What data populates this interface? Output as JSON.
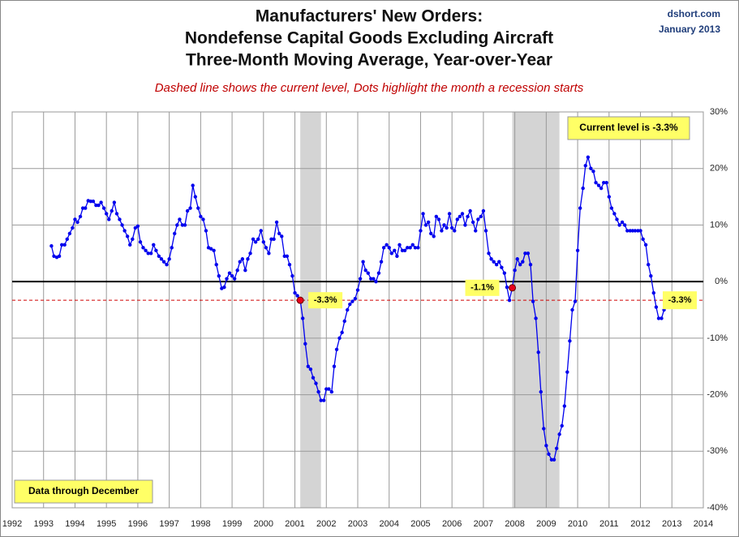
{
  "chart_data": {
    "type": "line",
    "title": [
      "Manufacturers' New Orders:",
      "Nondefense Capital Goods Excluding Aircraft",
      "Three-Month Moving Average, Year-over-Year"
    ],
    "subtitle": "Dashed line shows the current level, Dots highlight the month a recession starts",
    "source": "dshort.com",
    "date": "January 2013",
    "annotations": {
      "current_level": "Current level is -3.3%",
      "data_through": "Data through December",
      "end_label": "-3.3%"
    },
    "reference_line": -3.3,
    "xlim": [
      1992,
      2014
    ],
    "xticks": [
      1992,
      1993,
      1994,
      1995,
      1996,
      1997,
      1998,
      1999,
      2000,
      2001,
      2002,
      2003,
      2004,
      2005,
      2006,
      2007,
      2008,
      2009,
      2010,
      2011,
      2012,
      2013,
      2014
    ],
    "ylim": [
      -40,
      30
    ],
    "yticks": [
      {
        "value": -40,
        "label": "-40%"
      },
      {
        "value": -30,
        "label": "-30%"
      },
      {
        "value": -20,
        "label": "-20%"
      },
      {
        "value": -10,
        "label": "-10%"
      },
      {
        "value": 0,
        "label": "0%"
      },
      {
        "value": 10,
        "label": "10%"
      },
      {
        "value": 20,
        "label": "20%"
      },
      {
        "value": 30,
        "label": "30%"
      }
    ],
    "grid": true,
    "recessions": [
      [
        2001.17,
        2001.83
      ],
      [
        2007.92,
        2009.42
      ]
    ],
    "recession_starts": {
      "color": "#e8001c",
      "x": [
        2001.17,
        2007.92
      ],
      "values": [
        -3.3,
        -1.1
      ],
      "value_labels": [
        "-3.3%",
        "-1.1%"
      ]
    },
    "series": [
      {
        "color": "#0000ee",
        "x": [
          1993.25,
          1993.33,
          1993.42,
          1993.5,
          1993.58,
          1993.67,
          1993.75,
          1993.83,
          1993.92,
          1994,
          1994.08,
          1994.17,
          1994.25,
          1994.33,
          1994.42,
          1994.5,
          1994.58,
          1994.67,
          1994.75,
          1994.83,
          1994.92,
          1995,
          1995.08,
          1995.17,
          1995.25,
          1995.33,
          1995.42,
          1995.5,
          1995.58,
          1995.67,
          1995.75,
          1995.83,
          1995.92,
          1996,
          1996.08,
          1996.17,
          1996.25,
          1996.33,
          1996.42,
          1996.5,
          1996.58,
          1996.67,
          1996.75,
          1996.83,
          1996.92,
          1997,
          1997.08,
          1997.17,
          1997.25,
          1997.33,
          1997.42,
          1997.5,
          1997.58,
          1997.67,
          1997.75,
          1997.83,
          1997.92,
          1998,
          1998.08,
          1998.17,
          1998.25,
          1998.33,
          1998.42,
          1998.5,
          1998.58,
          1998.67,
          1998.75,
          1998.83,
          1998.92,
          1999,
          1999.08,
          1999.17,
          1999.25,
          1999.33,
          1999.42,
          1999.5,
          1999.58,
          1999.67,
          1999.75,
          1999.83,
          1999.92,
          2000,
          2000.08,
          2000.17,
          2000.25,
          2000.33,
          2000.42,
          2000.5,
          2000.58,
          2000.67,
          2000.75,
          2000.83,
          2000.92,
          2001,
          2001.08,
          2001.17,
          2001.25,
          2001.33,
          2001.42,
          2001.5,
          2001.58,
          2001.67,
          2001.75,
          2001.83,
          2001.92,
          2002,
          2002.08,
          2002.17,
          2002.25,
          2002.33,
          2002.42,
          2002.5,
          2002.58,
          2002.67,
          2002.75,
          2002.83,
          2002.92,
          2003,
          2003.08,
          2003.17,
          2003.25,
          2003.33,
          2003.42,
          2003.5,
          2003.58,
          2003.67,
          2003.75,
          2003.83,
          2003.92,
          2004,
          2004.08,
          2004.17,
          2004.25,
          2004.33,
          2004.42,
          2004.5,
          2004.58,
          2004.67,
          2004.75,
          2004.83,
          2004.92,
          2005,
          2005.08,
          2005.17,
          2005.25,
          2005.33,
          2005.42,
          2005.5,
          2005.58,
          2005.67,
          2005.75,
          2005.83,
          2005.92,
          2006,
          2006.08,
          2006.17,
          2006.25,
          2006.33,
          2006.42,
          2006.5,
          2006.58,
          2006.67,
          2006.75,
          2006.83,
          2006.92,
          2007,
          2007.08,
          2007.17,
          2007.25,
          2007.33,
          2007.42,
          2007.5,
          2007.58,
          2007.67,
          2007.75,
          2007.83,
          2007.92,
          2008,
          2008.08,
          2008.17,
          2008.25,
          2008.33,
          2008.42,
          2008.5,
          2008.58,
          2008.67,
          2008.75,
          2008.83,
          2008.92,
          2009,
          2009.08,
          2009.17,
          2009.25,
          2009.33,
          2009.42,
          2009.5,
          2009.58,
          2009.67,
          2009.75,
          2009.83,
          2009.92,
          2010,
          2010.08,
          2010.17,
          2010.25,
          2010.33,
          2010.42,
          2010.5,
          2010.58,
          2010.67,
          2010.75,
          2010.83,
          2010.92,
          2011,
          2011.08,
          2011.17,
          2011.25,
          2011.33,
          2011.42,
          2011.5,
          2011.58,
          2011.67,
          2011.75,
          2011.83,
          2011.92,
          2012,
          2012.08,
          2012.17,
          2012.25,
          2012.33,
          2012.42,
          2012.5,
          2012.58,
          2012.67,
          2012.75,
          2012.83,
          2012.92
        ],
        "values": [
          6.3,
          4.5,
          4.3,
          4.5,
          6.5,
          6.5,
          7.5,
          8.5,
          9.5,
          11,
          10.5,
          11.5,
          13,
          13,
          14.3,
          14.2,
          14.2,
          13.5,
          13.5,
          14,
          13,
          12,
          11,
          12.5,
          14,
          12,
          11,
          10,
          9,
          8,
          6.5,
          7.5,
          9.5,
          9.8,
          7,
          6,
          5.5,
          5,
          5,
          6.5,
          5.5,
          4.5,
          4,
          3.5,
          3,
          4,
          6,
          8.5,
          10,
          11,
          10,
          10,
          12.5,
          13,
          17,
          15,
          13,
          11.5,
          11,
          9,
          6,
          5.8,
          5.5,
          3,
          1,
          -1.2,
          -1,
          0.5,
          1.5,
          1,
          0.5,
          2,
          3.5,
          4,
          2,
          4,
          5,
          7.5,
          7,
          7.5,
          9,
          7,
          6,
          5,
          7.5,
          7.5,
          10.5,
          8.5,
          8,
          4.5,
          4.5,
          3,
          1,
          -2,
          -2.5,
          -3.3,
          -6.5,
          -11,
          -15,
          -15.5,
          -17,
          -18,
          -19.5,
          -21,
          -21,
          -19,
          -19,
          -19.5,
          -15,
          -12,
          -10,
          -9,
          -7,
          -5,
          -4,
          -3.5,
          -3,
          -1.5,
          0.5,
          3.5,
          2,
          1.5,
          0.5,
          0.5,
          0,
          1.5,
          3.5,
          6,
          6.5,
          6,
          5,
          5.5,
          4.5,
          6.5,
          5.5,
          5.5,
          6,
          6,
          6.5,
          6,
          6,
          9,
          12,
          10,
          10.5,
          8.5,
          8,
          11.5,
          11,
          9,
          10,
          9.5,
          12,
          9.5,
          9,
          11,
          11.5,
          12,
          10,
          11.5,
          12.5,
          10.5,
          9,
          11,
          11.5,
          12.5,
          9,
          5,
          4,
          3.5,
          3,
          3.5,
          2.5,
          1.5,
          -1,
          -3.3,
          -1.1,
          2,
          4,
          3,
          3.5,
          5,
          5,
          3,
          -3.5,
          -6.5,
          -12.5,
          -19.5,
          -26,
          -29,
          -30.5,
          -31.5,
          -31.5,
          -29.5,
          -27,
          -25.5,
          -22,
          -16,
          -10.5,
          -5,
          -3.5,
          5.5,
          13,
          16.5,
          20.5,
          22,
          20,
          19.5,
          17.5,
          17,
          16.5,
          17.5,
          17.5,
          15,
          13,
          12,
          11,
          10,
          10.5,
          10,
          9,
          9,
          9,
          9,
          9,
          9,
          7.5,
          6.5,
          3,
          1,
          -2,
          -4.5,
          -6.5,
          -6.5,
          -5,
          -4,
          -3.3
        ]
      }
    ]
  }
}
